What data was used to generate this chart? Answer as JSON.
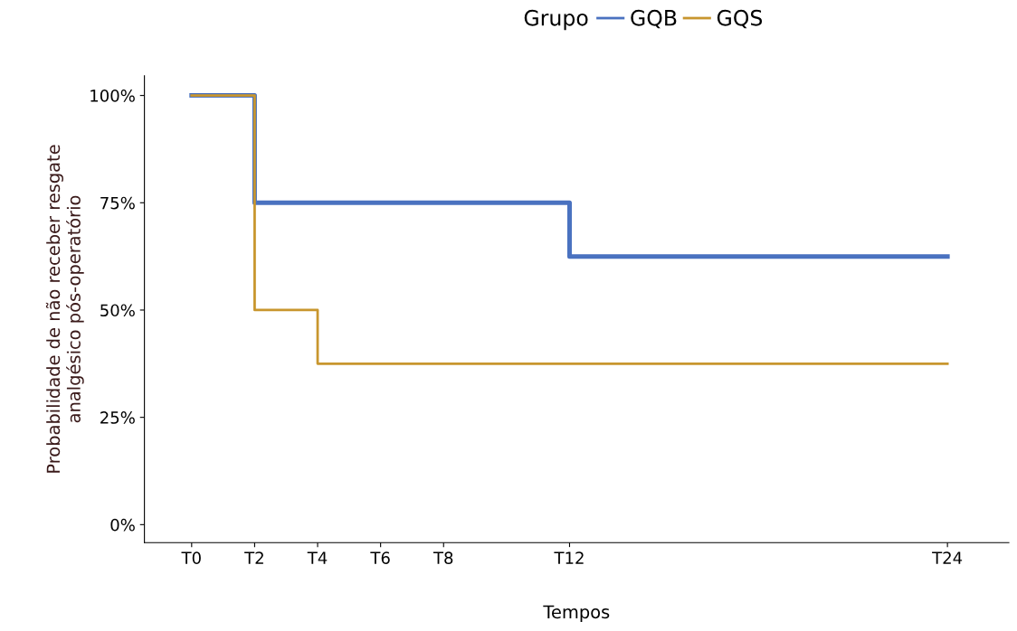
{
  "chart_data": {
    "type": "step",
    "xlabel": "Tempos",
    "ylabel": "Probabilidade de não receber resgate\nanalgésico pós-operatório",
    "legend_title": "Grupo",
    "legend": "top",
    "categories": [
      "T0",
      null,
      "T2",
      null,
      "T4",
      null,
      "T6",
      null,
      "T8",
      null,
      null,
      null,
      "T12",
      null,
      null,
      null,
      null,
      null,
      null,
      null,
      null,
      null,
      null,
      null,
      "T24"
    ],
    "series": [
      {
        "name": "GQB",
        "color": "#4a72c0",
        "values": [
          100,
          100,
          75,
          75,
          75,
          75,
          75,
          75,
          75,
          75,
          75,
          75,
          62.5,
          62.5,
          62.5,
          62.5,
          62.5,
          62.5,
          62.5,
          62.5,
          62.5,
          62.5,
          62.5,
          62.5,
          62.5
        ]
      },
      {
        "name": "GQS",
        "color": "#c8962e",
        "values": [
          100,
          100,
          50,
          50,
          37.5,
          37.5,
          37.5,
          37.5,
          37.5,
          37.5,
          37.5,
          37.5,
          37.5,
          37.5,
          37.5,
          37.5,
          37.5,
          37.5,
          37.5,
          37.5,
          37.5,
          37.5,
          37.5,
          37.5,
          37.5
        ]
      }
    ],
    "ylim": [
      -4.2,
      104.6
    ],
    "yticks": [
      {
        "value": 0,
        "label": "0%"
      },
      {
        "value": 25,
        "label": "25%"
      },
      {
        "value": 50,
        "label": "50%"
      },
      {
        "value": 75,
        "label": "75%"
      },
      {
        "value": 100,
        "label": "100%"
      }
    ],
    "grid": false
  }
}
